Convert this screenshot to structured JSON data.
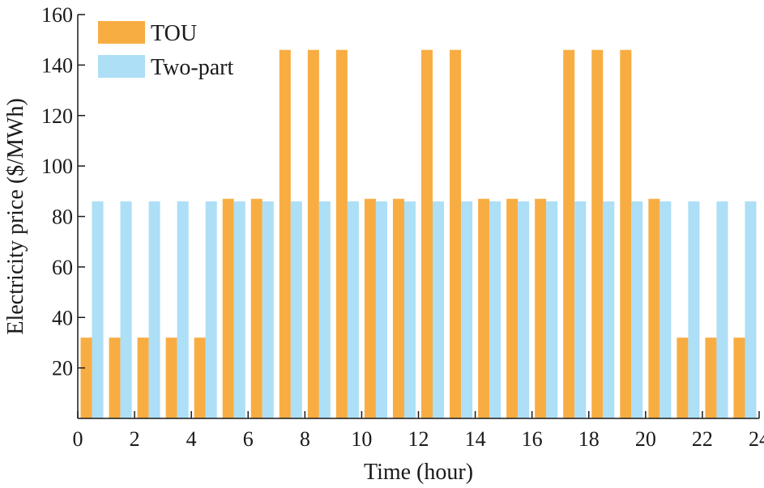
{
  "chart_data": {
    "type": "bar",
    "xlabel": "Time (hour)",
    "ylabel": "Electricity price ($/MWh)",
    "xlim": [
      0,
      24
    ],
    "ylim": [
      0,
      160
    ],
    "xticks": [
      0,
      2,
      4,
      6,
      8,
      10,
      12,
      14,
      16,
      18,
      20,
      22,
      24
    ],
    "yticks": [
      20,
      40,
      60,
      80,
      100,
      120,
      140,
      160
    ],
    "grid": false,
    "legend_position": "top-left",
    "x": [
      1,
      2,
      3,
      4,
      5,
      6,
      7,
      8,
      9,
      10,
      11,
      12,
      13,
      14,
      15,
      16,
      17,
      18,
      19,
      20,
      21,
      22,
      23,
      24
    ],
    "series": [
      {
        "name": "TOU",
        "color": "#F8AD43",
        "values": [
          32,
          32,
          32,
          32,
          32,
          87,
          87,
          146,
          146,
          146,
          87,
          87,
          146,
          146,
          87,
          87,
          87,
          146,
          146,
          146,
          87,
          32,
          32,
          32
        ]
      },
      {
        "name": "Two-part",
        "color": "#ADDFF6",
        "values": [
          86,
          86,
          86,
          86,
          86,
          86,
          86,
          86,
          86,
          86,
          86,
          86,
          86,
          86,
          86,
          86,
          86,
          86,
          86,
          86,
          86,
          86,
          86,
          86
        ]
      }
    ]
  }
}
